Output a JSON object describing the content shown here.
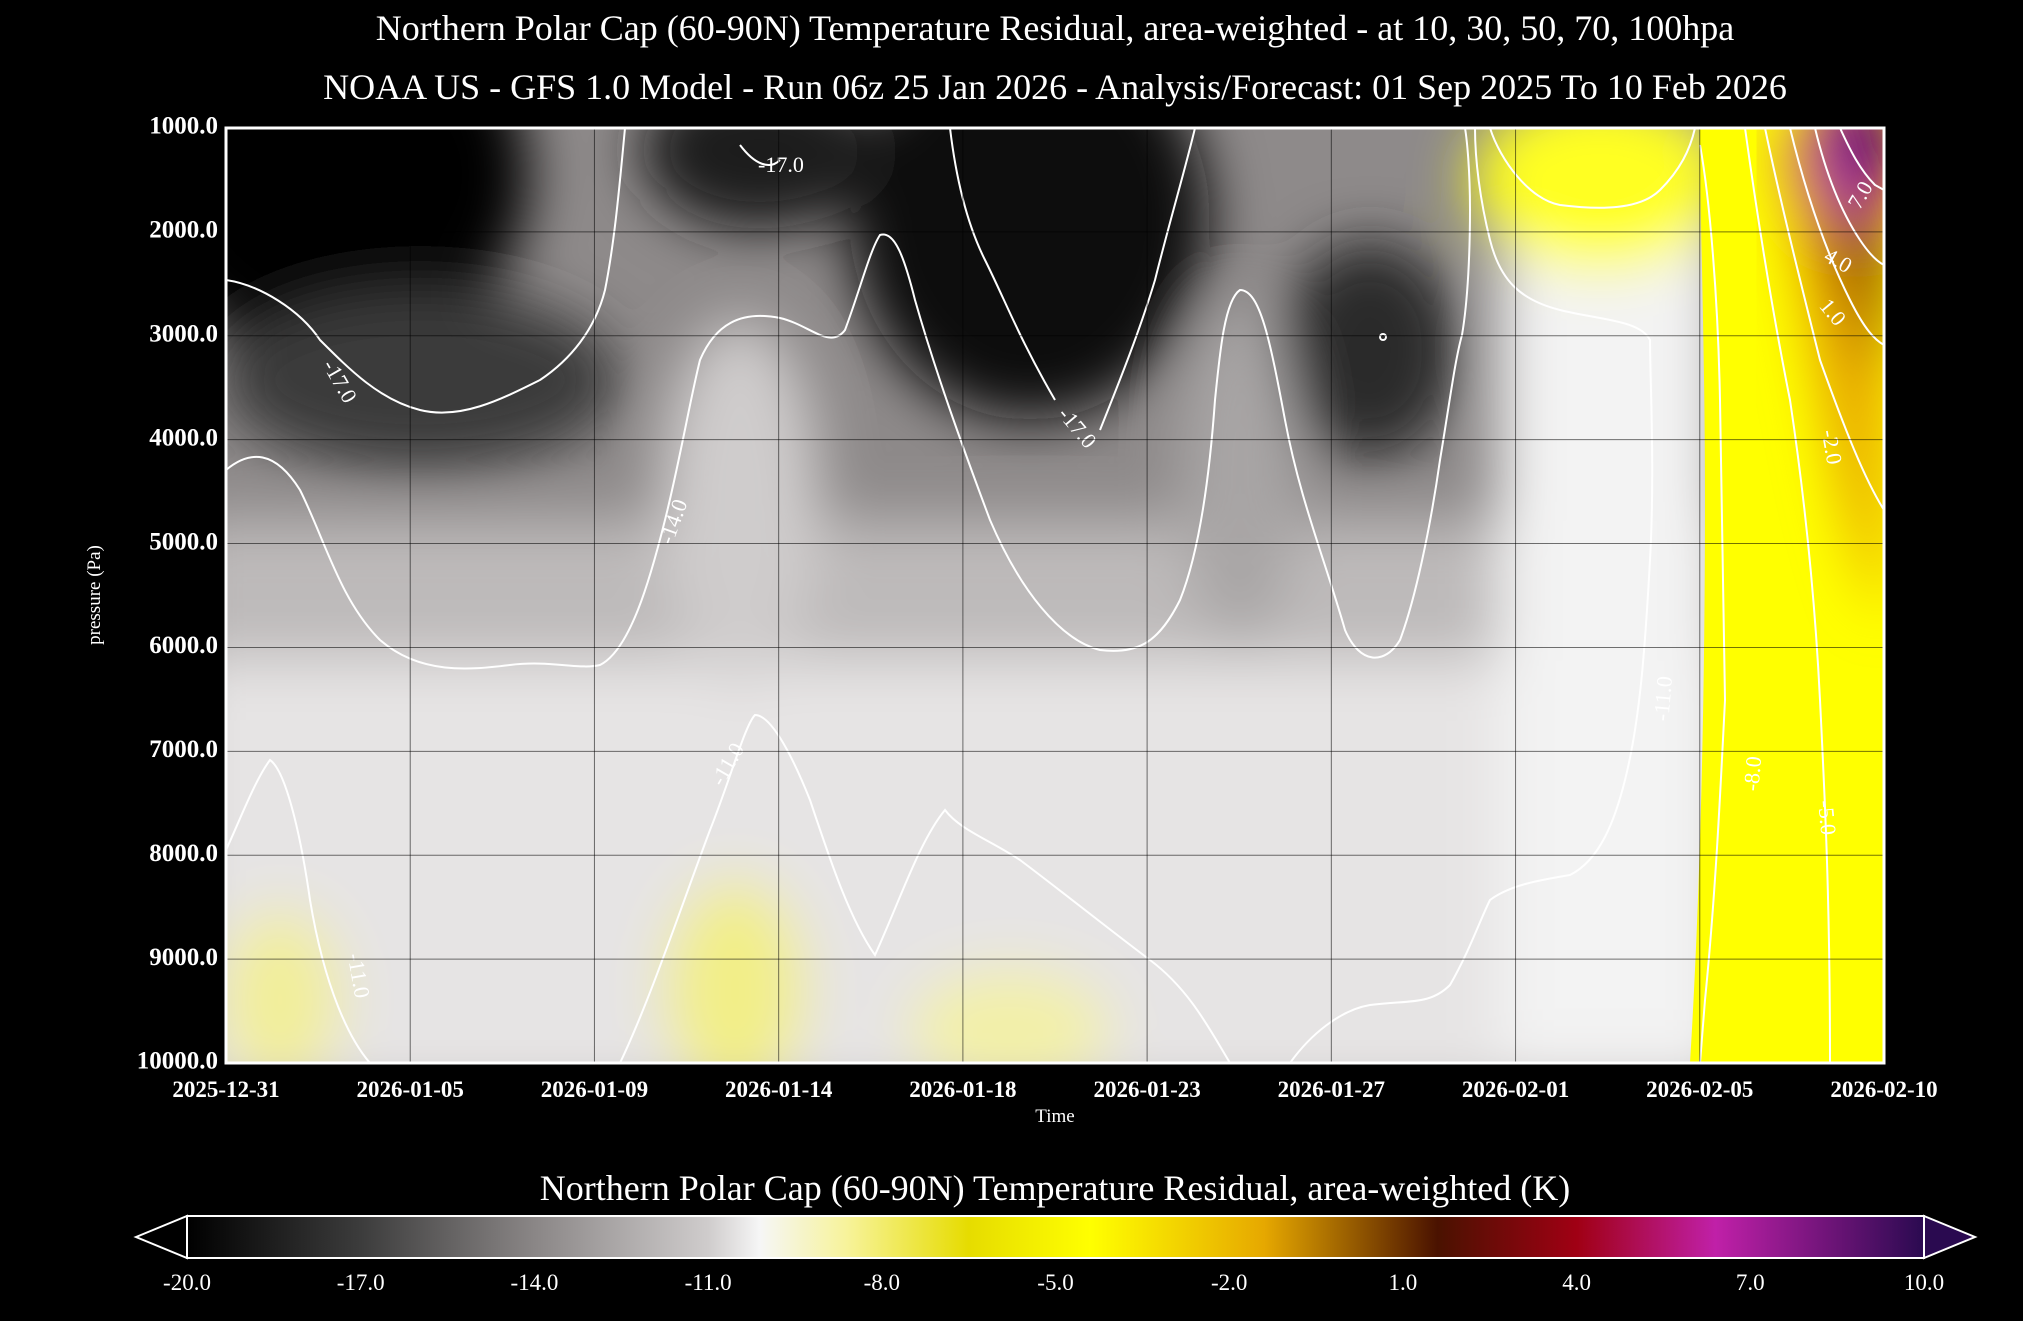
{
  "chart_data": {
    "type": "heatmap",
    "title": "Northern Polar Cap (60-90N) Temperature Residual, area-weighted - at 10, 30, 50, 70, 100hpa",
    "subtitle": "NOAA US - GFS 1.0 Model - Run 06z 25 Jan 2026 - Analysis/Forecast: 01 Sep 2025 To 10 Feb 2026",
    "xlabel": "Time",
    "ylabel": "pressure (Pa)",
    "x_ticks": [
      "2025-12-31",
      "2026-01-05",
      "2026-01-09",
      "2026-01-14",
      "2026-01-18",
      "2026-01-23",
      "2026-01-27",
      "2026-02-01",
      "2026-02-05",
      "2026-02-10"
    ],
    "y_ticks": [
      "1000.0",
      "2000.0",
      "3000.0",
      "4000.0",
      "5000.0",
      "6000.0",
      "7000.0",
      "8000.0",
      "9000.0",
      "10000.0"
    ],
    "ylim": [
      1000,
      10000
    ],
    "grid": true,
    "colorbar": {
      "title": "Northern Polar Cap (60-90N) Temperature Residual, area-weighted (K)",
      "ticks": [
        "-20.0",
        "-17.0",
        "-14.0",
        "-11.0",
        "-8.0",
        "-5.0",
        "-2.0",
        "1.0",
        "4.0",
        "7.0",
        "10.0"
      ],
      "range": [
        -20,
        10
      ],
      "colors": [
        "#000000",
        "#3a3a3a",
        "#8c8888",
        "#c9c6c6",
        "#f4f4f4",
        "#f6f27a",
        "#e8e000",
        "#ffff00",
        "#d49000",
        "#7a1a00",
        "#9c0010",
        "#b01aa0",
        "#3a0a5a"
      ]
    },
    "contour_labels": [
      "-17.0",
      "-17.0",
      "-17.0",
      "-14.0",
      "-11.0",
      "-11.0",
      "-11.0",
      "-8.0",
      "-5.0",
      "-2.0",
      "1.0",
      "4.0",
      "7.0"
    ],
    "series": [
      {
        "name": "-17.0",
        "values": []
      },
      {
        "name": "-14.0",
        "values": []
      },
      {
        "name": "-11.0",
        "values": []
      }
    ]
  }
}
